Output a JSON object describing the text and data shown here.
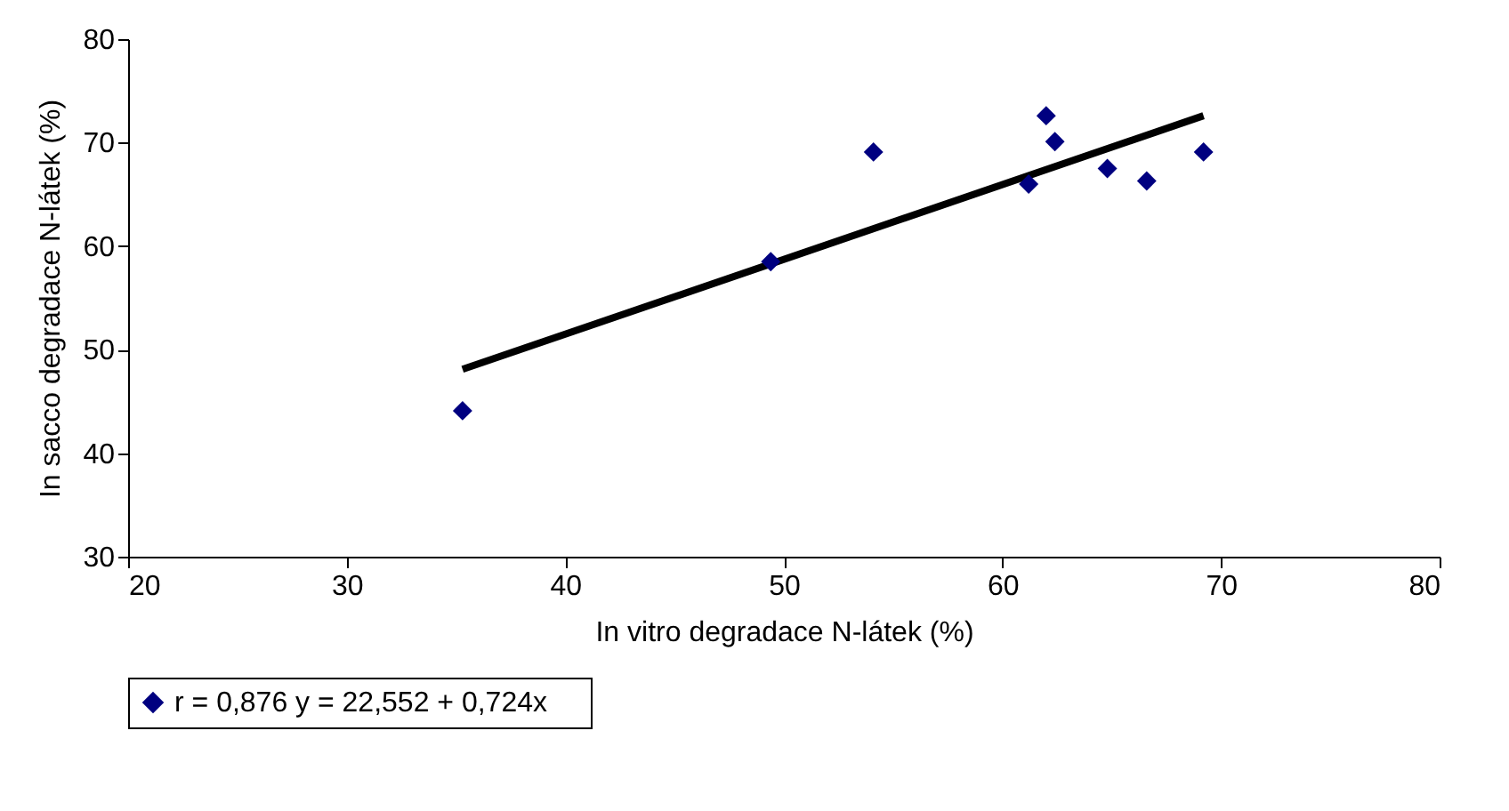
{
  "chart_data": {
    "type": "scatter",
    "xlabel": "In vitro degradace N-látek (%)",
    "ylabel": "In sacco degradace N-látek (%)",
    "xlim": [
      20,
      80
    ],
    "xticks": [
      20,
      30,
      40,
      50,
      60,
      70,
      80
    ],
    "ylim": [
      30,
      80
    ],
    "yticks": [
      30,
      40,
      50,
      60,
      70,
      80
    ],
    "grid": false,
    "legend": "bottom",
    "marker": "diamond",
    "series": [
      {
        "name": "r = 0,876     y = 22,552 + 0,724x",
        "color": "#000080",
        "x": [
          35.3,
          49.4,
          54.1,
          61.2,
          62.0,
          62.4,
          64.8,
          66.6,
          69.2
        ],
        "values": [
          44.1,
          58.5,
          69.1,
          66.0,
          72.6,
          70.1,
          67.5,
          66.3,
          69.1
        ]
      },
      {
        "type": "line",
        "color": "#000000",
        "line_style": "solid",
        "marker": "none",
        "x": [
          35.3,
          69.2
        ],
        "values": [
          48.1,
          72.6
        ]
      }
    ]
  }
}
